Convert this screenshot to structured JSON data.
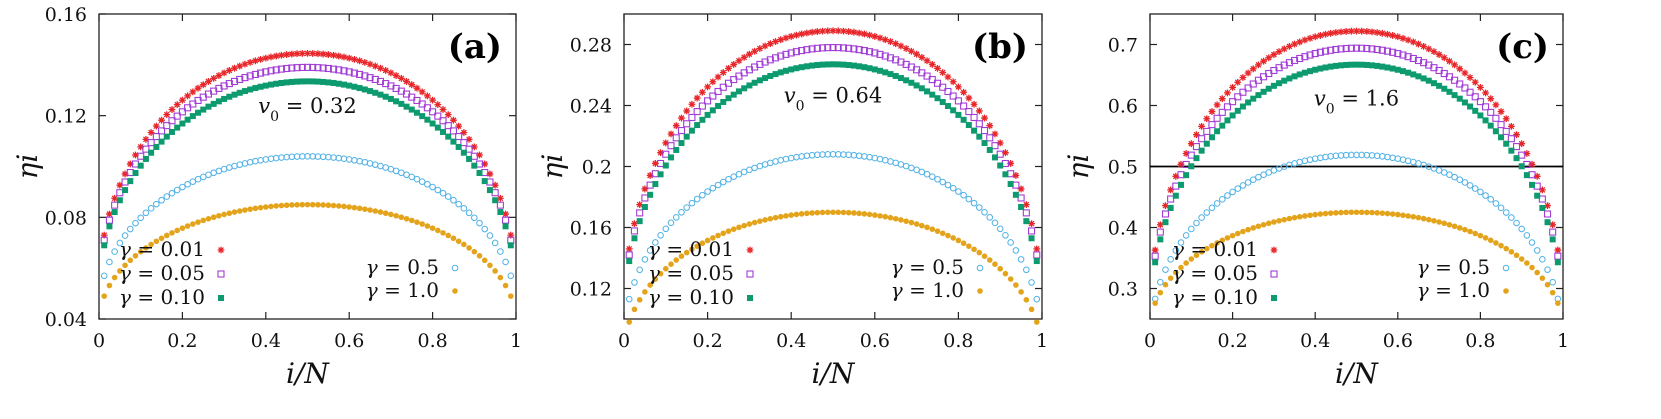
{
  "colors": {
    "g001": "#e8262a",
    "g005": "#a23cd6",
    "g010": "#0d9a6e",
    "g05": "#4fb1e6",
    "g10": "#e3a41c",
    "axis": "#222222"
  },
  "chart_data": [
    {
      "type": "scatter",
      "panel_label": "(a)",
      "xlabel": "i/N",
      "ylabel": "ηi",
      "xlim": [
        0,
        1
      ],
      "ylim": [
        0.04,
        0.16
      ],
      "xticks": [
        "0",
        "0.2",
        "0.4",
        "0.6",
        "0.8",
        "1"
      ],
      "yticks": [
        "0.04",
        "0.08",
        "0.12",
        "0.16"
      ],
      "ytick_values": [
        0.04,
        0.08,
        0.12,
        0.16
      ],
      "annotation": "v0 = 0.32",
      "annotation_sym": "v",
      "annotation_sub": "0",
      "annotation_val": " = 0.32",
      "annotation_pos": [
        0.5,
        0.121
      ],
      "hline": null,
      "grid": false,
      "legend_position": "bottom",
      "series": [
        {
          "name": "γ = 0.01",
          "marker": "star",
          "color_key": "g001",
          "edge": 0.073,
          "peak": 0.1445
        },
        {
          "name": "γ = 0.05",
          "marker": "square",
          "color_key": "g005",
          "edge": 0.071,
          "peak": 0.139
        },
        {
          "name": "γ = 0.10",
          "marker": "filled-square",
          "color_key": "g010",
          "edge": 0.069,
          "peak": 0.1335
        },
        {
          "name": "γ = 0.5",
          "marker": "circle",
          "color_key": "g05",
          "edge": 0.057,
          "peak": 0.104
        },
        {
          "name": "γ = 1.0",
          "marker": "dot",
          "color_key": "g10",
          "edge": 0.049,
          "peak": 0.085
        }
      ]
    },
    {
      "type": "scatter",
      "panel_label": "(b)",
      "xlabel": "i/N",
      "ylabel": "ηi",
      "xlim": [
        0,
        1
      ],
      "ylim": [
        0.1,
        0.3
      ],
      "xticks": [
        "0",
        "0.2",
        "0.4",
        "0.6",
        "0.8",
        "1"
      ],
      "yticks": [
        "0.12",
        "0.16",
        "0.2",
        "0.24",
        "0.28"
      ],
      "ytick_values": [
        0.12,
        0.16,
        0.2,
        0.24,
        0.28
      ],
      "annotation": "v0 = 0.64",
      "annotation_sym": "v",
      "annotation_sub": "0",
      "annotation_val": " = 0.64",
      "annotation_pos": [
        0.5,
        0.242
      ],
      "hline": null,
      "grid": false,
      "legend_position": "bottom",
      "series": [
        {
          "name": "γ = 0.01",
          "marker": "star",
          "color_key": "g001",
          "edge": 0.146,
          "peak": 0.289
        },
        {
          "name": "γ = 0.05",
          "marker": "square",
          "color_key": "g005",
          "edge": 0.142,
          "peak": 0.278
        },
        {
          "name": "γ = 0.10",
          "marker": "filled-square",
          "color_key": "g010",
          "edge": 0.138,
          "peak": 0.267
        },
        {
          "name": "γ = 0.5",
          "marker": "circle",
          "color_key": "g05",
          "edge": 0.113,
          "peak": 0.208
        },
        {
          "name": "γ = 1.0",
          "marker": "dot",
          "color_key": "g10",
          "edge": 0.098,
          "peak": 0.17
        }
      ]
    },
    {
      "type": "scatter",
      "panel_label": "(c)",
      "xlabel": "i/N",
      "ylabel": "ηi",
      "xlim": [
        0,
        1
      ],
      "ylim": [
        0.25,
        0.75
      ],
      "xticks": [
        "0",
        "0.2",
        "0.4",
        "0.6",
        "0.8",
        "1"
      ],
      "yticks": [
        "0.3",
        "0.4",
        "0.5",
        "0.6",
        "0.7"
      ],
      "ytick_values": [
        0.3,
        0.4,
        0.5,
        0.6,
        0.7
      ],
      "annotation": "v0 = 1.6",
      "annotation_sym": "v",
      "annotation_sub": "0",
      "annotation_val": " = 1.6",
      "annotation_pos": [
        0.5,
        0.6
      ],
      "hline": 0.5,
      "grid": false,
      "legend_position": "bottom",
      "series": [
        {
          "name": "γ = 0.01",
          "marker": "star",
          "color_key": "g001",
          "edge": 0.363,
          "peak": 0.722
        },
        {
          "name": "γ = 0.05",
          "marker": "square",
          "color_key": "g005",
          "edge": 0.353,
          "peak": 0.694
        },
        {
          "name": "γ = 0.10",
          "marker": "filled-square",
          "color_key": "g010",
          "edge": 0.343,
          "peak": 0.667
        },
        {
          "name": "γ = 0.5",
          "marker": "circle",
          "color_key": "g05",
          "edge": 0.283,
          "peak": 0.519
        },
        {
          "name": "γ = 1.0",
          "marker": "dot",
          "color_key": "g10",
          "edge": 0.276,
          "peak": 0.425
        }
      ]
    }
  ]
}
